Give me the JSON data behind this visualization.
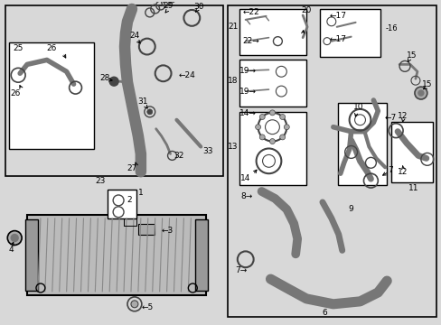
{
  "bg_color": "#d8d8d8",
  "box_color": "#e8e8e8",
  "white": "#ffffff",
  "line_color": "#000000",
  "part_dark": "#444444",
  "part_mid": "#777777",
  "part_light": "#aaaaaa",
  "fig_width": 4.89,
  "fig_height": 3.6,
  "dpi": 100
}
